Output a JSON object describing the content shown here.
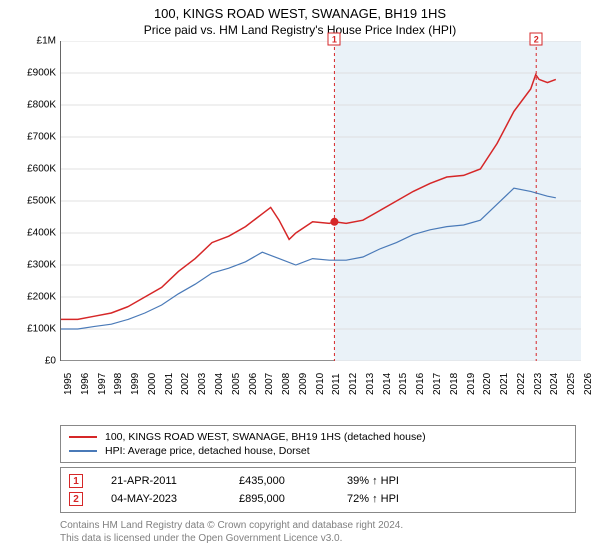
{
  "title": "100, KINGS ROAD WEST, SWANAGE, BH19 1HS",
  "subtitle": "Price paid vs. HM Land Registry's House Price Index (HPI)",
  "chart": {
    "type": "line",
    "background_color": "#ffffff",
    "grid_color": "#d9d9d9",
    "shaded_region_color": "#eaf2f8",
    "shaded_region_start_year": 2011.3,
    "axis_color": "#666666",
    "tick_label_fontsize": 10,
    "x_range": [
      1995,
      2026
    ],
    "y_range": [
      0,
      1000000
    ],
    "y_ticks": [
      0,
      100000,
      200000,
      300000,
      400000,
      500000,
      600000,
      700000,
      800000,
      900000,
      1000000
    ],
    "y_tick_labels": [
      "£0",
      "£100K",
      "£200K",
      "£300K",
      "£400K",
      "£500K",
      "£600K",
      "£700K",
      "£800K",
      "£900K",
      "£1M"
    ],
    "x_ticks": [
      1995,
      1996,
      1997,
      1998,
      1999,
      2000,
      2001,
      2002,
      2003,
      2004,
      2005,
      2006,
      2007,
      2008,
      2009,
      2010,
      2011,
      2012,
      2013,
      2014,
      2015,
      2016,
      2017,
      2018,
      2019,
      2020,
      2021,
      2022,
      2023,
      2024,
      2025,
      2026
    ],
    "series": [
      {
        "name": "100, KINGS ROAD WEST, SWANAGE, BH19 1HS (detached house)",
        "color": "#d62728",
        "line_width": 1.5,
        "points": [
          [
            1995,
            130000
          ],
          [
            1996,
            130000
          ],
          [
            1997,
            140000
          ],
          [
            1998,
            150000
          ],
          [
            1999,
            170000
          ],
          [
            2000,
            200000
          ],
          [
            2001,
            230000
          ],
          [
            2002,
            280000
          ],
          [
            2003,
            320000
          ],
          [
            2004,
            370000
          ],
          [
            2005,
            390000
          ],
          [
            2006,
            420000
          ],
          [
            2007,
            460000
          ],
          [
            2007.5,
            480000
          ],
          [
            2008,
            440000
          ],
          [
            2008.6,
            380000
          ],
          [
            2009,
            400000
          ],
          [
            2010,
            435000
          ],
          [
            2011,
            430000
          ],
          [
            2011.3,
            435000
          ],
          [
            2012,
            430000
          ],
          [
            2013,
            440000
          ],
          [
            2014,
            470000
          ],
          [
            2015,
            500000
          ],
          [
            2016,
            530000
          ],
          [
            2017,
            555000
          ],
          [
            2018,
            575000
          ],
          [
            2019,
            580000
          ],
          [
            2020,
            600000
          ],
          [
            2021,
            680000
          ],
          [
            2022,
            780000
          ],
          [
            2023,
            850000
          ],
          [
            2023.3,
            895000
          ],
          [
            2023.5,
            880000
          ],
          [
            2024,
            870000
          ],
          [
            2024.5,
            880000
          ]
        ],
        "sale_dot": {
          "year": 2011.3,
          "value": 435000
        }
      },
      {
        "name": "HPI: Average price, detached house, Dorset",
        "color": "#4a7ab8",
        "line_width": 1.2,
        "points": [
          [
            1995,
            100000
          ],
          [
            1996,
            100000
          ],
          [
            1997,
            108000
          ],
          [
            1998,
            115000
          ],
          [
            1999,
            130000
          ],
          [
            2000,
            150000
          ],
          [
            2001,
            175000
          ],
          [
            2002,
            210000
          ],
          [
            2003,
            240000
          ],
          [
            2004,
            275000
          ],
          [
            2005,
            290000
          ],
          [
            2006,
            310000
          ],
          [
            2007,
            340000
          ],
          [
            2008,
            320000
          ],
          [
            2009,
            300000
          ],
          [
            2010,
            320000
          ],
          [
            2011,
            315000
          ],
          [
            2012,
            315000
          ],
          [
            2013,
            325000
          ],
          [
            2014,
            350000
          ],
          [
            2015,
            370000
          ],
          [
            2016,
            395000
          ],
          [
            2017,
            410000
          ],
          [
            2018,
            420000
          ],
          [
            2019,
            425000
          ],
          [
            2020,
            440000
          ],
          [
            2021,
            490000
          ],
          [
            2022,
            540000
          ],
          [
            2023,
            530000
          ],
          [
            2024,
            515000
          ],
          [
            2024.5,
            510000
          ]
        ]
      }
    ],
    "markers": [
      {
        "id": "1",
        "year": 2011.3,
        "value": 435000,
        "color": "#d62728",
        "dashed_line": true
      },
      {
        "id": "2",
        "year": 2023.33,
        "value": 895000,
        "color": "#d62728",
        "dashed_line": true
      }
    ]
  },
  "legend": {
    "items": [
      {
        "color": "#d62728",
        "label": "100, KINGS ROAD WEST, SWANAGE, BH19 1HS (detached house)"
      },
      {
        "color": "#4a7ab8",
        "label": "HPI: Average price, detached house, Dorset"
      }
    ]
  },
  "transactions": [
    {
      "id": "1",
      "color": "#d62728",
      "date": "21-APR-2011",
      "price": "£435,000",
      "hpi_delta": "39% ↑ HPI"
    },
    {
      "id": "2",
      "color": "#d62728",
      "date": "04-MAY-2023",
      "price": "£895,000",
      "hpi_delta": "72% ↑ HPI"
    }
  ],
  "attribution": {
    "line1": "Contains HM Land Registry data © Crown copyright and database right 2024.",
    "line2": "This data is licensed under the Open Government Licence v3.0."
  }
}
